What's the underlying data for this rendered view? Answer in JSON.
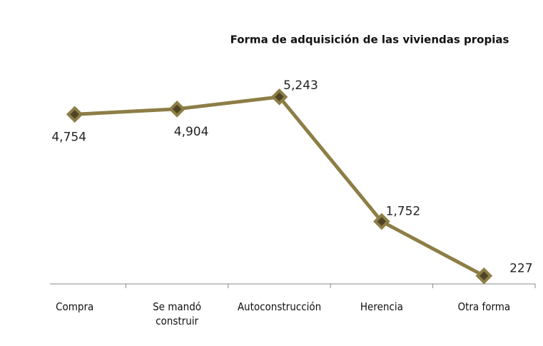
{
  "chart_data": {
    "type": "line",
    "title": "Forma de adquisición de las viviendas propias",
    "categories": [
      "Compra",
      "Se mandó construir",
      "Autoconstrucción",
      "Herencia",
      "Otra forma"
    ],
    "values": [
      4754,
      4904,
      5243,
      1752,
      227
    ],
    "value_labels": [
      "4,754",
      "4,904",
      "5,243",
      "1,752",
      "227"
    ],
    "color": "#8c7e46",
    "ylim": [
      0,
      6000
    ]
  }
}
